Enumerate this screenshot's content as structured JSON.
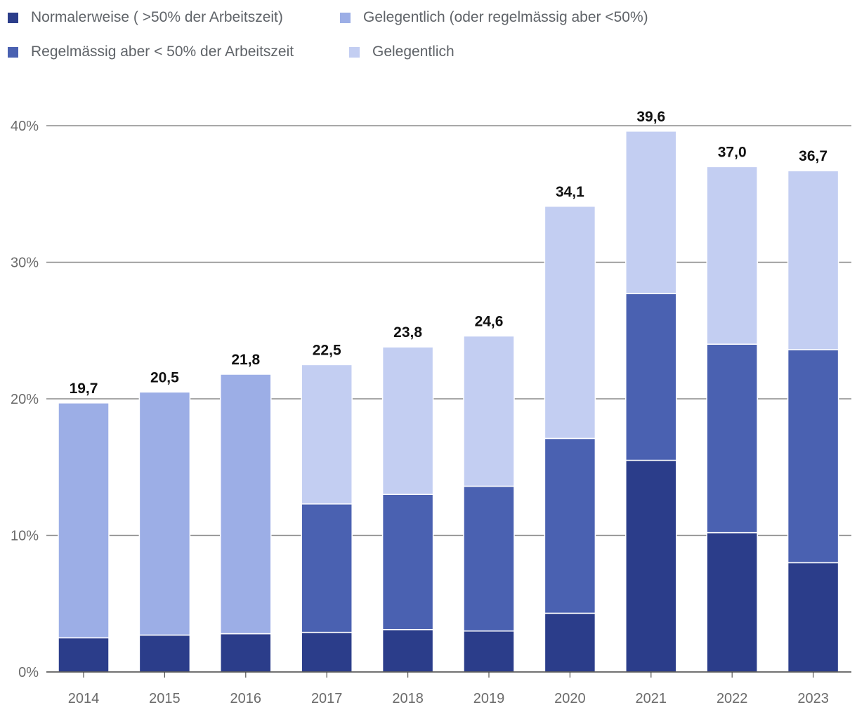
{
  "chart_data": {
    "type": "bar",
    "stacked": true,
    "categories": [
      "2014",
      "2015",
      "2016",
      "2017",
      "2018",
      "2019",
      "2020",
      "2021",
      "2022",
      "2023"
    ],
    "series": [
      {
        "name": "Normalerweise ( >50% der Arbeitszeit)",
        "color": "#2b3d8a",
        "values": [
          2.5,
          2.7,
          2.8,
          2.9,
          3.1,
          3.0,
          4.3,
          15.5,
          10.2,
          8.0
        ]
      },
      {
        "name": "Regelmässig aber < 50% der Arbeitszeit",
        "color": "#4a61b1",
        "values": [
          0,
          0,
          0,
          9.4,
          9.9,
          10.6,
          12.8,
          12.2,
          13.8,
          15.6
        ]
      },
      {
        "name": "Gelegentlich (oder regelmässig aber <50%)",
        "color": "#9caee6",
        "values": [
          17.2,
          17.8,
          19.0,
          0,
          0,
          0,
          0,
          0,
          0,
          0
        ]
      },
      {
        "name": "Gelegentlich",
        "color": "#c3cef2",
        "values": [
          0,
          0,
          0,
          10.2,
          10.8,
          11.0,
          17.0,
          11.9,
          13.0,
          13.1
        ]
      }
    ],
    "totals": [
      "19,7",
      "20,5",
      "21,8",
      "22,5",
      "23,8",
      "24,6",
      "34,1",
      "39,6",
      "37,0",
      "36,7"
    ],
    "totals_values": [
      19.7,
      20.5,
      21.8,
      22.5,
      23.8,
      24.6,
      34.1,
      39.6,
      37.0,
      36.7
    ],
    "ylim": [
      0,
      40
    ],
    "yticks": [
      0,
      10,
      20,
      30,
      40
    ],
    "ytick_labels": [
      "0%",
      "10%",
      "20%",
      "30%",
      "40%"
    ],
    "grid": true,
    "legend_position": "top-left",
    "title": "",
    "xlabel": "",
    "ylabel": ""
  },
  "legend": {
    "items": [
      {
        "label": "Normalerweise ( >50% der Arbeitszeit)",
        "color": "#2b3d8a"
      },
      {
        "label": "Gelegentlich (oder regelmässig aber <50%)",
        "color": "#9caee6"
      },
      {
        "label": "Regelmässig aber < 50% der Arbeitszeit",
        "color": "#4a61b1"
      },
      {
        "label": "Gelegentlich",
        "color": "#c3cef2"
      }
    ]
  }
}
